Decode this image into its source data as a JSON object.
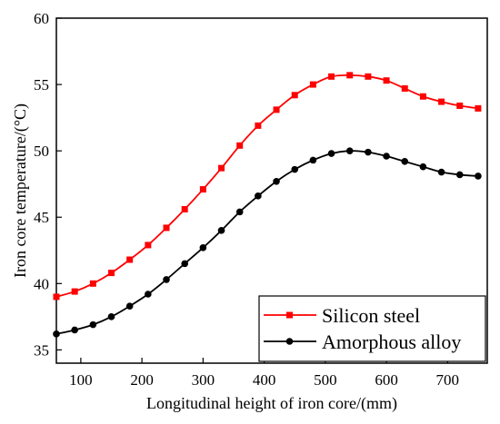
{
  "chart_data": {
    "type": "line",
    "xlabel": "Longitudinal height of iron core/(mm)",
    "ylabel": "Iron core temperature/(°C)",
    "xlim": [
      60,
      765
    ],
    "ylim": [
      34,
      60
    ],
    "xticks": [
      100,
      200,
      300,
      400,
      500,
      600,
      700
    ],
    "yticks": [
      35,
      40,
      45,
      50,
      55,
      60
    ],
    "grid": false,
    "legend_placement": "bottom-right",
    "series": [
      {
        "name": "Silicon steel",
        "color": "#ff0000",
        "marker": "square",
        "x": [
          60,
          90,
          120,
          150,
          180,
          210,
          240,
          270,
          300,
          330,
          360,
          390,
          420,
          450,
          480,
          510,
          540,
          570,
          600,
          630,
          660,
          690,
          720,
          750
        ],
        "y": [
          39.0,
          39.4,
          40.0,
          40.8,
          41.8,
          42.9,
          44.2,
          45.6,
          47.1,
          48.7,
          50.4,
          51.9,
          53.1,
          54.2,
          55.0,
          55.6,
          55.7,
          55.6,
          55.3,
          54.7,
          54.1,
          53.7,
          53.4,
          53.2
        ]
      },
      {
        "name": "Amorphous alloy",
        "color": "#000000",
        "marker": "circle",
        "x": [
          60,
          90,
          120,
          150,
          180,
          210,
          240,
          270,
          300,
          330,
          360,
          390,
          420,
          450,
          480,
          510,
          540,
          570,
          600,
          630,
          660,
          690,
          720,
          750
        ],
        "y": [
          36.2,
          36.5,
          36.9,
          37.5,
          38.3,
          39.2,
          40.3,
          41.5,
          42.7,
          44.0,
          45.4,
          46.6,
          47.7,
          48.6,
          49.3,
          49.8,
          50.0,
          49.9,
          49.6,
          49.2,
          48.8,
          48.4,
          48.2,
          48.1
        ]
      }
    ]
  }
}
